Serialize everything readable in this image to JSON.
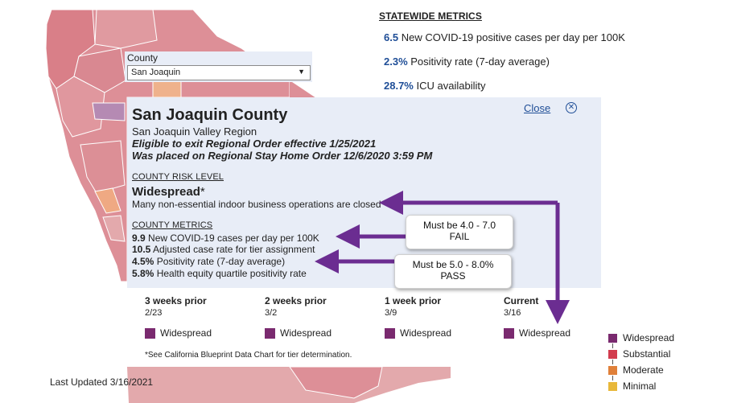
{
  "statewide": {
    "title": "STATEWIDE METRICS",
    "metrics": [
      {
        "value": "6.5",
        "label": "New COVID-19 positive cases per day per 100K"
      },
      {
        "value": "2.3%",
        "label": "Positivity rate (7-day average)"
      },
      {
        "value": "28.7%",
        "label": "ICU availability"
      }
    ]
  },
  "county_select": {
    "label": "County",
    "selected": "San Joaquin"
  },
  "panel": {
    "title": "San Joaquin County",
    "close_label": "Close",
    "region": "San Joaquin Valley Region",
    "eligible": "Eligible to exit Regional Order effective 1/25/2021",
    "placed": "Was placed on Regional Stay Home Order 12/6/2020 3:59 PM",
    "risk_heading": "COUNTY RISK LEVEL",
    "risk_level": "Widespread",
    "risk_asterisk": "*",
    "risk_desc": "Many non-essential indoor business operations are closed",
    "metrics_heading": "COUNTY METRICS",
    "metrics": [
      {
        "value": "9.9",
        "label": "New COVID-19 cases per day per 100K"
      },
      {
        "value": "10.5",
        "label": "Adjusted case rate for tier assignment"
      },
      {
        "value": "4.5%",
        "label": "Positivity rate (7-day average)"
      },
      {
        "value": "5.8%",
        "label": "Health equity quartile positivity rate"
      }
    ],
    "history": [
      {
        "label": "3 weeks prior",
        "date": "2/23",
        "status": "Widespread"
      },
      {
        "label": "2 weeks prior",
        "date": "3/2",
        "status": "Widespread"
      },
      {
        "label": "1 week prior",
        "date": "3/9",
        "status": "Widespread"
      },
      {
        "label": "Current",
        "date": "3/16",
        "status": "Widespread"
      }
    ],
    "footnote": "*See California Blueprint Data Chart for tier determination."
  },
  "last_updated": "Last Updated 3/16/2021",
  "legend": [
    {
      "label": "Widespread",
      "color": "#7a2a6f"
    },
    {
      "label": "Substantial",
      "color": "#d23c4e"
    },
    {
      "label": "Moderate",
      "color": "#e0803a"
    },
    {
      "label": "Minimal",
      "color": "#e8b83a"
    }
  ],
  "callouts": [
    {
      "line1": "Must be 4.0 - 7.0",
      "line2": "FAIL"
    },
    {
      "line1": "Must be 5.0 - 8.0%",
      "line2": "PASS"
    }
  ],
  "colors": {
    "accent": "#1f4e97",
    "arrow": "#6b2d91",
    "map_widespread": "#dd8f97",
    "map_substantial": "#e3a9ac",
    "map_moderate": "#efb28c"
  }
}
